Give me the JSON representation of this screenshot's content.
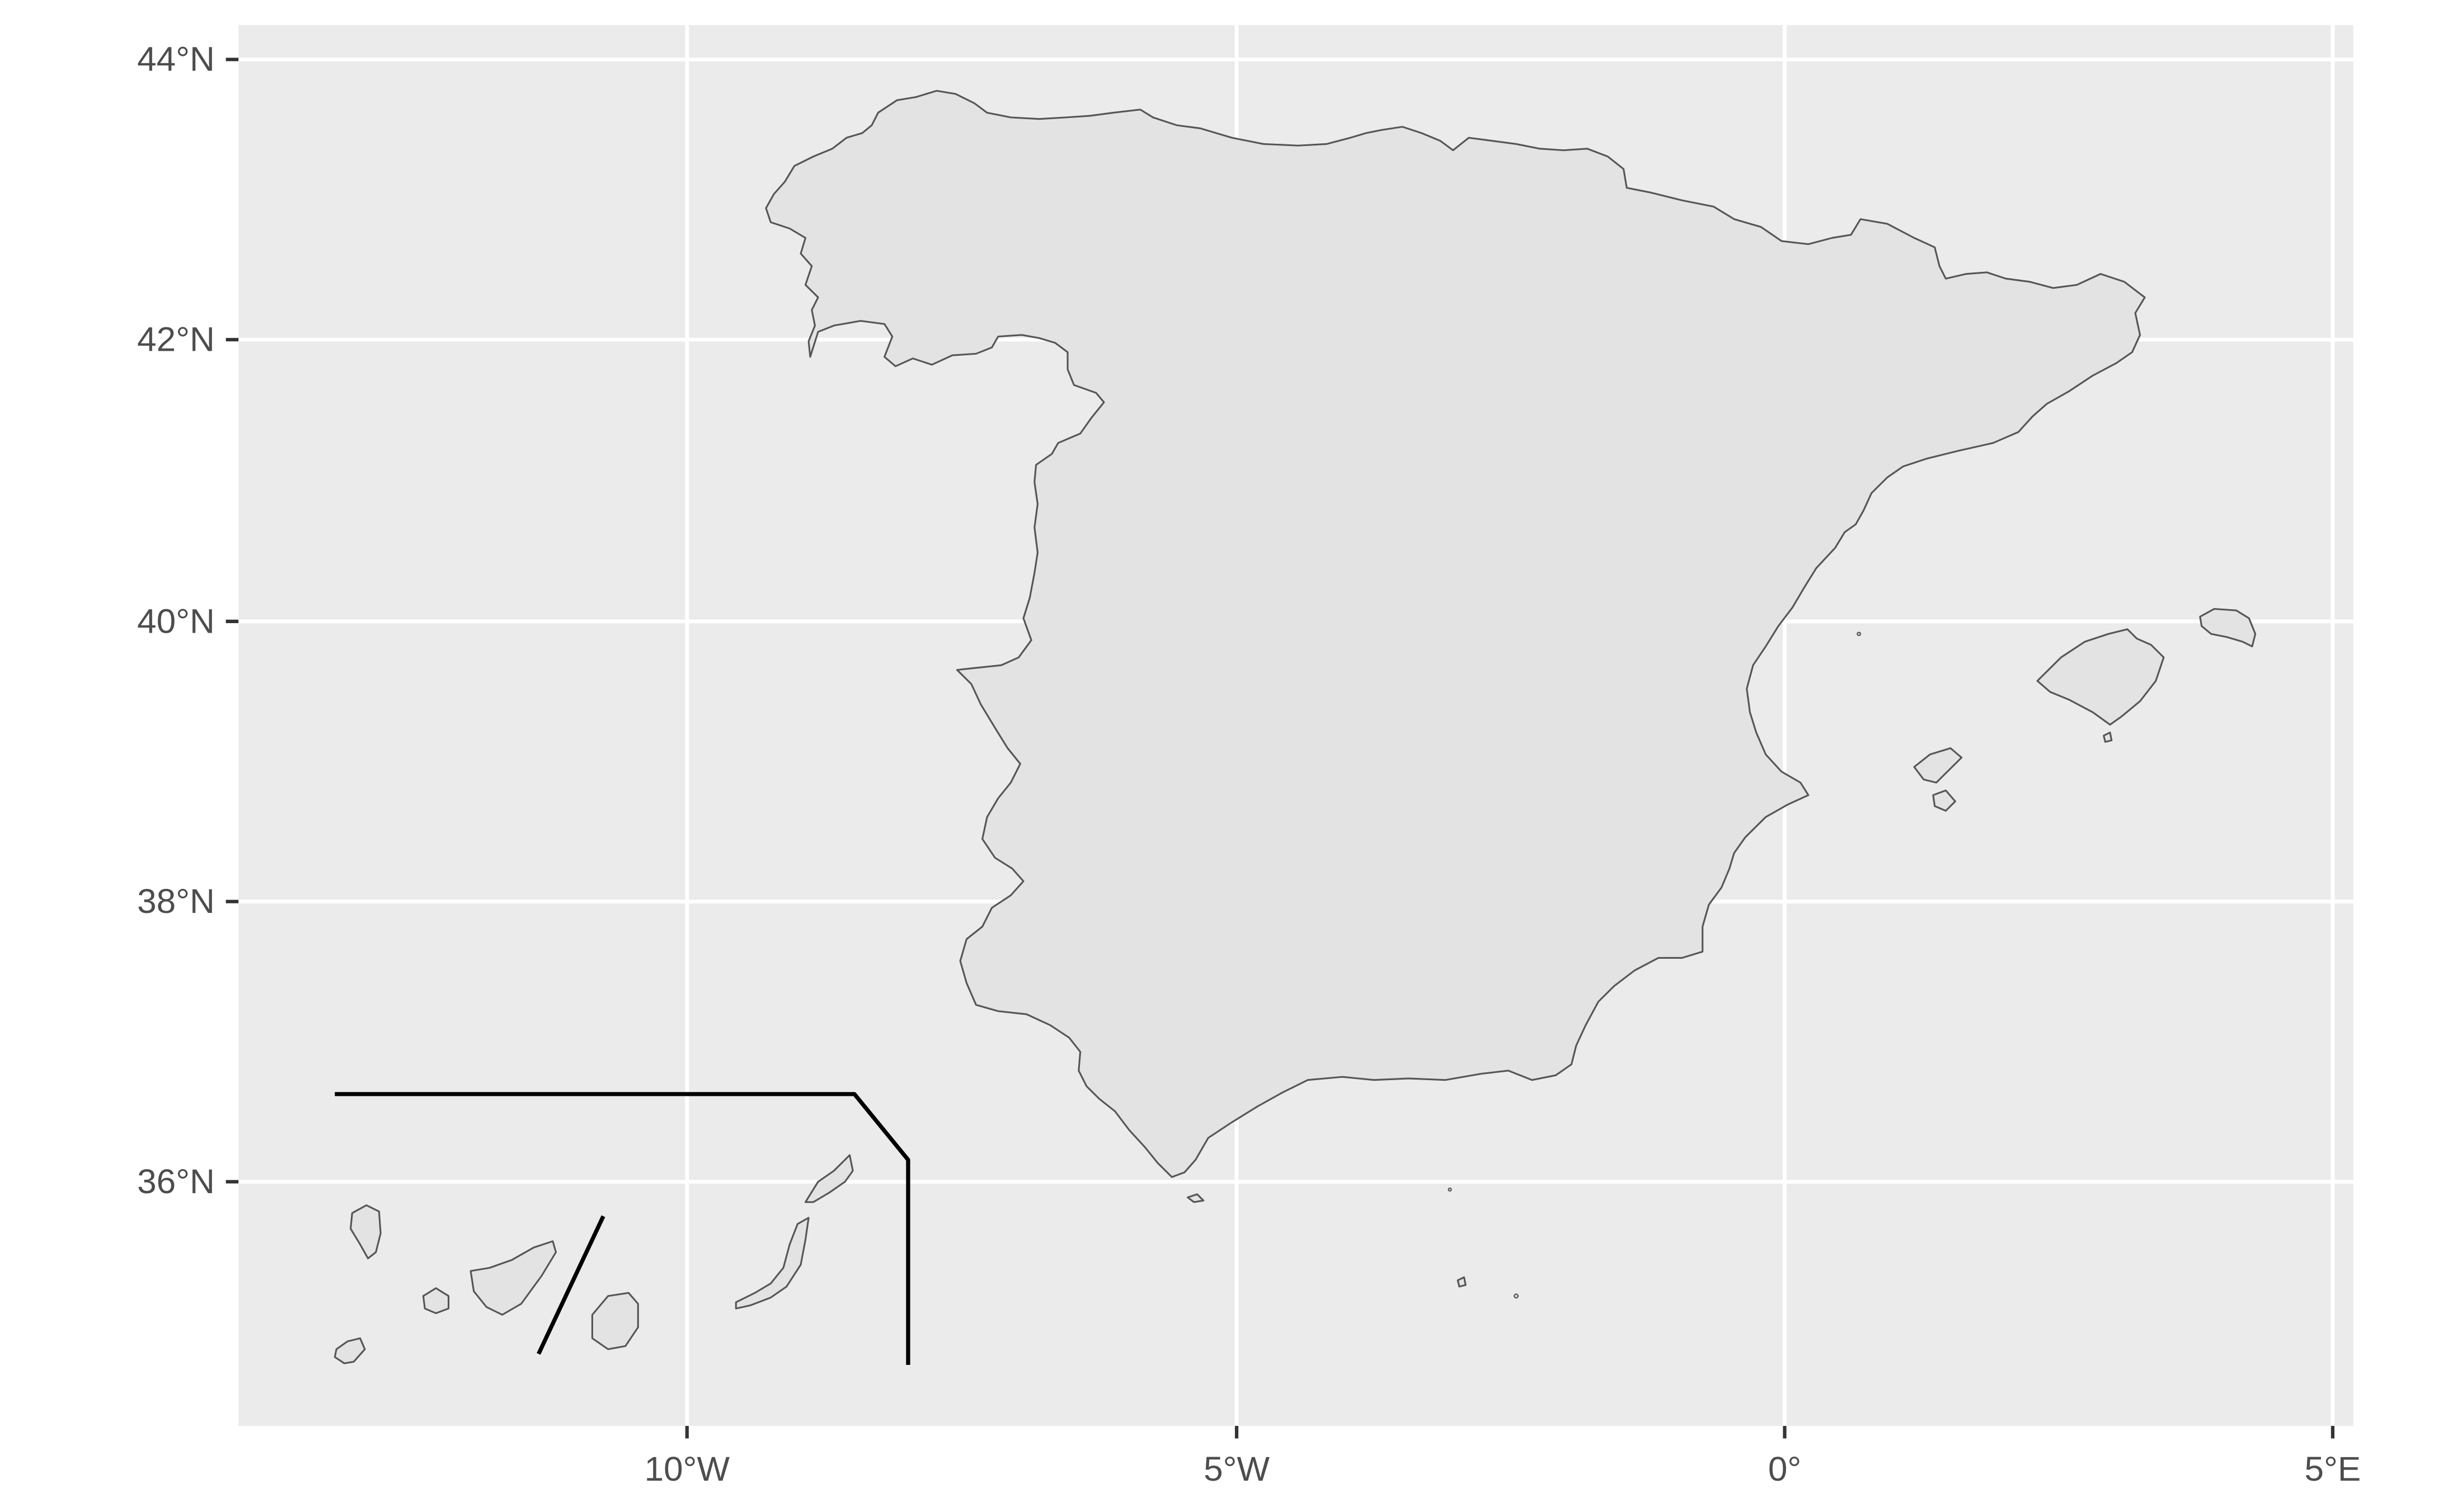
{
  "map": {
    "background_color": "#ebebeb",
    "gridline_color": "#ffffff",
    "land_fill": "#e3e3e3",
    "land_stroke": "#555555",
    "inset_line_color": "#000000",
    "x_axis_labels": [
      "10°W",
      "5°W",
      "0°",
      "5°E"
    ],
    "y_axis_labels": [
      "44°N",
      "42°N",
      "40°N",
      "38°N",
      "36°N"
    ],
    "regions": [
      "Iberian Peninsula (Spain)",
      "Balearic Islands",
      "Canary Islands (inset)"
    ]
  }
}
